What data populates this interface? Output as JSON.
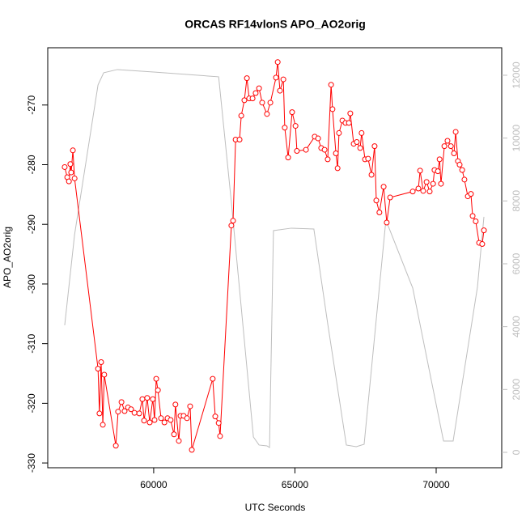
{
  "chart_data": {
    "type": "line",
    "title": "ORCAS RF14vlonS APO_AO2orig",
    "x_label": "UTC Seconds",
    "y_label": "APO_AO2orig",
    "xlim": [
      56250,
      72320
    ],
    "xticks": [
      60000,
      65000,
      70000
    ],
    "ylim": [
      -330.8,
      -260.4
    ],
    "yticks": [
      -330,
      -320,
      -310,
      -300,
      -290,
      -280,
      -270
    ],
    "y2lim": [
      -490,
      12875
    ],
    "y2ticks": [
      0,
      2000,
      4000,
      6000,
      8000,
      10000,
      12000
    ],
    "y2_color": "#bebebe",
    "series": [
      {
        "color": "#ff0000",
        "marker": "circle",
        "x": [
          56850,
          56940,
          57000,
          57050,
          57080,
          57140,
          57200,
          58030,
          58080,
          58140,
          58200,
          58250,
          58660,
          58740,
          58860,
          58970,
          59090,
          59200,
          59320,
          59490,
          59600,
          59660,
          59770,
          59860,
          59970,
          60030,
          60090,
          60150,
          60260,
          60380,
          60490,
          60600,
          60720,
          60770,
          60890,
          60950,
          61060,
          61180,
          61290,
          61350,
          62090,
          62180,
          62300,
          62350,
          62750,
          62810,
          62900,
          63040,
          63100,
          63210,
          63300,
          63380,
          63500,
          63610,
          63730,
          63840,
          64010,
          64130,
          64330,
          64390,
          64470,
          64590,
          64640,
          64760,
          64900,
          65020,
          65070,
          65390,
          65700,
          65820,
          65930,
          66050,
          66160,
          66280,
          66330,
          66450,
          66510,
          66560,
          66680,
          66790,
          66910,
          66960,
          67080,
          67190,
          67310,
          67360,
          67480,
          67590,
          67710,
          67820,
          67880,
          67990,
          68140,
          68250,
          68370,
          69170,
          69370,
          69430,
          69540,
          69660,
          69770,
          69890,
          69940,
          70060,
          70120,
          70170,
          70290,
          70400,
          70520,
          70630,
          70690,
          70770,
          70830,
          70920,
          71000,
          71120,
          71230,
          71290,
          71400,
          71520,
          71630,
          71690
        ],
        "values": [
          -280.4,
          -282.1,
          -282.8,
          -279.9,
          -281.3,
          -277.6,
          -282.3,
          -314.2,
          -321.7,
          -313.1,
          -323.6,
          -315.2,
          -327.1,
          -321.4,
          -319.8,
          -321.3,
          -320.7,
          -321.0,
          -321.6,
          -321.7,
          -319.3,
          -322.9,
          -319.1,
          -323.2,
          -319.3,
          -322.8,
          -315.9,
          -317.8,
          -322.5,
          -323.2,
          -322.5,
          -322.8,
          -325.2,
          -320.2,
          -326.3,
          -322.1,
          -322.1,
          -322.5,
          -320.5,
          -327.8,
          -315.9,
          -322.2,
          -323.3,
          -325.5,
          -290.2,
          -289.4,
          -275.8,
          -275.8,
          -271.8,
          -269.2,
          -265.5,
          -268.9,
          -268.9,
          -268.0,
          -267.2,
          -269.6,
          -271.5,
          -269.6,
          -265.4,
          -262.8,
          -267.6,
          -265.7,
          -273.8,
          -278.8,
          -271.2,
          -273.5,
          -277.7,
          -277.5,
          -275.3,
          -275.6,
          -277.2,
          -277.5,
          -279.1,
          -266.6,
          -270.7,
          -278.1,
          -280.6,
          -274.7,
          -272.6,
          -273.0,
          -273.0,
          -271.4,
          -276.5,
          -276.2,
          -277.2,
          -274.7,
          -279.1,
          -279.0,
          -281.7,
          -276.9,
          -286.0,
          -288.0,
          -283.7,
          -289.7,
          -285.5,
          -284.5,
          -284.0,
          -281.0,
          -284.4,
          -282.9,
          -284.5,
          -283.2,
          -280.9,
          -281.1,
          -279.1,
          -283.2,
          -276.9,
          -276.0,
          -276.9,
          -278.1,
          -274.5,
          -279.4,
          -280.0,
          -280.9,
          -282.5,
          -285.3,
          -284.9,
          -288.6,
          -289.5,
          -293.1,
          -293.3,
          -291.0
        ]
      },
      {
        "color": "#bebebe",
        "axis": "y2",
        "x": [
          56850,
          57200,
          58030,
          58230,
          58710,
          60000,
          62300,
          62750,
          63530,
          63730,
          64010,
          64100,
          64240,
          64870,
          65670,
          66160,
          66820,
          67170,
          67450,
          68220,
          69170,
          70260,
          70600,
          71460,
          71690
        ],
        "values": [
          4043,
          6928,
          11692,
          12078,
          12181,
          12104,
          11950,
          7958,
          489,
          232,
          206,
          155,
          7056,
          7134,
          7108,
          4095,
          232,
          180,
          258,
          7391,
          5228,
          361,
          361,
          5254,
          7494
        ]
      }
    ]
  }
}
